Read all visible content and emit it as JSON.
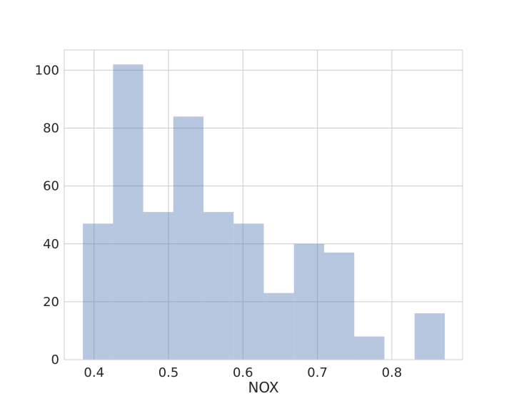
{
  "chart_data": {
    "type": "bar",
    "subtype": "histogram",
    "title": "",
    "xlabel": "NOX",
    "ylabel": "",
    "bins": [
      {
        "x0": 0.385,
        "x1": 0.4255,
        "count": 47
      },
      {
        "x0": 0.4255,
        "x1": 0.466,
        "count": 102
      },
      {
        "x0": 0.466,
        "x1": 0.5065,
        "count": 51
      },
      {
        "x0": 0.5065,
        "x1": 0.547,
        "count": 84
      },
      {
        "x0": 0.547,
        "x1": 0.5875,
        "count": 51
      },
      {
        "x0": 0.5875,
        "x1": 0.628,
        "count": 47
      },
      {
        "x0": 0.628,
        "x1": 0.6685,
        "count": 23
      },
      {
        "x0": 0.6685,
        "x1": 0.709,
        "count": 40
      },
      {
        "x0": 0.709,
        "x1": 0.7495,
        "count": 37
      },
      {
        "x0": 0.7495,
        "x1": 0.79,
        "count": 8
      },
      {
        "x0": 0.79,
        "x1": 0.8305,
        "count": 0
      },
      {
        "x0": 0.8305,
        "x1": 0.871,
        "count": 16
      }
    ],
    "xlim": [
      0.36,
      0.895
    ],
    "ylim": [
      0,
      107
    ],
    "xticks": [
      0.4,
      0.5,
      0.6,
      0.7,
      0.8
    ],
    "xtick_labels": [
      "0.4",
      "0.5",
      "0.6",
      "0.7",
      "0.8"
    ],
    "yticks": [
      0,
      20,
      40,
      60,
      80,
      100
    ],
    "ytick_labels": [
      "0",
      "20",
      "40",
      "60",
      "80",
      "100"
    ],
    "grid": true,
    "legend": "none",
    "colors": {
      "bar": "#4c72b0",
      "bar_opacity": 0.4,
      "grid": "#cccccc",
      "frame": "#cccccc",
      "text": "#262626"
    }
  }
}
